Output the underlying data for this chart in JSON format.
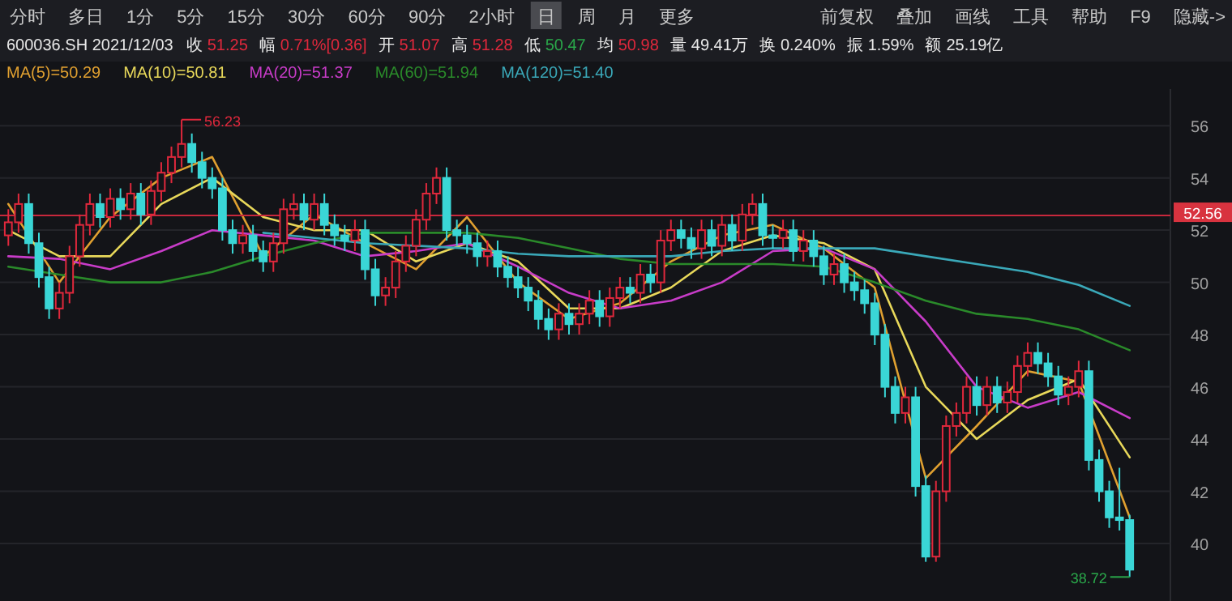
{
  "chart_data": {
    "type": "candlestick",
    "title": "600036.SH 2021/12/03",
    "subtitle": "收 51.25 幅 0.71%[0.36] 开 51.07 高 51.28 低 50.47 均 50.98 量 49.41万 换 0.240% 振 1.59% 额 25.19亿",
    "categories": [
      null,
      null,
      null,
      null,
      null,
      null,
      null,
      null,
      null,
      null,
      null,
      null,
      null,
      null,
      null,
      null,
      null,
      null,
      null,
      null,
      null,
      null,
      null,
      null,
      null,
      null,
      null,
      null,
      null,
      null,
      null,
      null,
      null,
      null,
      null,
      null,
      null,
      null,
      null,
      null,
      null,
      null,
      null,
      null,
      null,
      null,
      null,
      null,
      null,
      null,
      null,
      null,
      null,
      null,
      null,
      null,
      null,
      null,
      null,
      null,
      null,
      null,
      null,
      null,
      null,
      null,
      null,
      null,
      null,
      null,
      null,
      null,
      null,
      null,
      null,
      null,
      null,
      null,
      null,
      null,
      null,
      null,
      null,
      null,
      null,
      null,
      null,
      null,
      null,
      null,
      null,
      null,
      null,
      null,
      null,
      null,
      null,
      null,
      null,
      null,
      null,
      null,
      null,
      null,
      null,
      null,
      null,
      null,
      null,
      null,
      null
    ],
    "ohlc": [
      [
        51.8,
        52.8,
        51.4,
        52.3
      ],
      [
        52.3,
        53.4,
        51.9,
        53.0
      ],
      [
        53.0,
        53.4,
        51.1,
        51.5
      ],
      [
        51.5,
        51.9,
        49.8,
        50.2
      ],
      [
        50.2,
        50.6,
        48.6,
        49.0
      ],
      [
        49.0,
        50.0,
        48.6,
        49.6
      ],
      [
        49.6,
        51.4,
        49.2,
        51.0
      ],
      [
        51.0,
        52.6,
        50.6,
        52.2
      ],
      [
        52.2,
        53.4,
        51.8,
        53.0
      ],
      [
        53.0,
        53.4,
        52.1,
        52.5
      ],
      [
        52.5,
        53.6,
        52.1,
        53.2
      ],
      [
        53.2,
        53.6,
        52.4,
        52.8
      ],
      [
        52.8,
        53.8,
        52.4,
        53.4
      ],
      [
        53.4,
        53.8,
        52.2,
        52.6
      ],
      [
        52.6,
        53.9,
        52.2,
        53.5
      ],
      [
        53.5,
        54.6,
        53.1,
        54.2
      ],
      [
        54.2,
        55.2,
        53.8,
        54.8
      ],
      [
        54.8,
        56.23,
        54.4,
        55.3
      ],
      [
        55.3,
        55.7,
        54.2,
        54.6
      ],
      [
        54.6,
        55.0,
        53.6,
        54.0
      ],
      [
        54.0,
        54.4,
        53.2,
        53.6
      ],
      [
        53.6,
        54.0,
        51.6,
        52.0
      ],
      [
        52.0,
        52.4,
        51.1,
        51.5
      ],
      [
        51.5,
        52.2,
        51.1,
        51.8
      ],
      [
        51.8,
        52.2,
        50.8,
        51.2
      ],
      [
        51.2,
        51.6,
        50.4,
        50.8
      ],
      [
        50.8,
        51.9,
        50.4,
        51.5
      ],
      [
        51.5,
        53.2,
        51.1,
        52.8
      ],
      [
        52.8,
        53.4,
        52.4,
        53.0
      ],
      [
        53.0,
        53.4,
        52.0,
        52.4
      ],
      [
        52.4,
        53.4,
        52.0,
        53.0
      ],
      [
        53.0,
        53.4,
        51.8,
        52.2
      ],
      [
        52.2,
        52.6,
        51.4,
        51.8
      ],
      [
        51.8,
        52.2,
        51.2,
        51.6
      ],
      [
        51.6,
        52.4,
        51.2,
        52.0
      ],
      [
        52.0,
        52.4,
        50.1,
        50.5
      ],
      [
        50.5,
        50.9,
        49.1,
        49.5
      ],
      [
        49.5,
        50.2,
        49.1,
        49.8
      ],
      [
        49.8,
        51.2,
        49.4,
        50.8
      ],
      [
        50.8,
        51.8,
        50.4,
        51.4
      ],
      [
        51.4,
        52.8,
        51.0,
        52.4
      ],
      [
        52.4,
        53.8,
        52.0,
        53.4
      ],
      [
        53.4,
        54.4,
        53.0,
        54.0
      ],
      [
        54.0,
        54.4,
        51.6,
        52.0
      ],
      [
        52.0,
        52.4,
        51.4,
        51.8
      ],
      [
        51.8,
        52.2,
        51.1,
        51.5
      ],
      [
        51.5,
        51.9,
        50.6,
        51.0
      ],
      [
        51.0,
        51.6,
        50.6,
        51.2
      ],
      [
        51.2,
        51.6,
        50.2,
        50.6
      ],
      [
        50.6,
        51.0,
        49.8,
        50.2
      ],
      [
        50.2,
        50.6,
        49.4,
        49.8
      ],
      [
        49.8,
        50.2,
        48.9,
        49.3
      ],
      [
        49.3,
        49.7,
        48.2,
        48.6
      ],
      [
        48.6,
        49.0,
        47.8,
        48.2
      ],
      [
        48.2,
        49.2,
        47.8,
        48.8
      ],
      [
        48.8,
        49.2,
        48.0,
        48.4
      ],
      [
        48.4,
        49.2,
        48.0,
        48.8
      ],
      [
        48.8,
        49.7,
        48.4,
        49.3
      ],
      [
        49.3,
        49.7,
        48.3,
        48.7
      ],
      [
        48.7,
        49.8,
        48.3,
        49.4
      ],
      [
        49.4,
        50.2,
        49.0,
        49.8
      ],
      [
        49.8,
        50.2,
        49.2,
        49.6
      ],
      [
        49.6,
        50.7,
        49.2,
        50.3
      ],
      [
        50.3,
        50.7,
        49.6,
        50.0
      ],
      [
        50.0,
        52.0,
        49.6,
        51.6
      ],
      [
        51.6,
        52.4,
        51.2,
        52.0
      ],
      [
        52.0,
        52.4,
        51.3,
        51.7
      ],
      [
        51.7,
        52.1,
        50.9,
        51.3
      ],
      [
        51.3,
        52.4,
        50.9,
        52.0
      ],
      [
        52.0,
        52.4,
        51.0,
        51.4
      ],
      [
        51.4,
        52.6,
        51.0,
        52.2
      ],
      [
        52.2,
        52.6,
        51.2,
        51.6
      ],
      [
        51.6,
        53.0,
        51.2,
        52.6
      ],
      [
        52.6,
        53.4,
        52.2,
        53.0
      ],
      [
        53.0,
        53.4,
        51.4,
        51.8
      ],
      [
        51.8,
        52.2,
        51.3,
        51.7
      ],
      [
        51.7,
        52.4,
        51.3,
        52.0
      ],
      [
        52.0,
        52.4,
        50.8,
        51.2
      ],
      [
        51.2,
        52.0,
        50.8,
        51.6
      ],
      [
        51.6,
        52.0,
        50.6,
        51.0
      ],
      [
        51.0,
        51.4,
        49.9,
        50.3
      ],
      [
        50.3,
        51.1,
        49.9,
        50.7
      ],
      [
        50.7,
        51.1,
        49.6,
        50.0
      ],
      [
        50.0,
        50.4,
        49.3,
        49.7
      ],
      [
        49.7,
        50.1,
        48.8,
        49.2
      ],
      [
        49.2,
        49.6,
        47.6,
        48.0
      ],
      [
        48.0,
        48.4,
        45.6,
        46.0
      ],
      [
        46.0,
        46.4,
        44.6,
        45.0
      ],
      [
        45.0,
        46.0,
        44.6,
        45.6
      ],
      [
        45.6,
        46.0,
        41.8,
        42.2
      ],
      [
        42.2,
        42.6,
        39.3,
        39.5
      ],
      [
        39.5,
        42.4,
        39.3,
        42.0
      ],
      [
        42.0,
        44.9,
        41.6,
        44.5
      ],
      [
        44.5,
        45.4,
        44.1,
        45.0
      ],
      [
        45.0,
        46.4,
        44.6,
        46.0
      ],
      [
        46.0,
        46.4,
        44.9,
        45.3
      ],
      [
        45.3,
        46.4,
        44.9,
        46.0
      ],
      [
        46.0,
        46.4,
        45.0,
        45.4
      ],
      [
        45.4,
        46.2,
        45.0,
        45.8
      ],
      [
        45.8,
        47.2,
        45.4,
        46.8
      ],
      [
        46.8,
        47.7,
        46.4,
        47.3
      ],
      [
        47.3,
        47.7,
        46.5,
        46.9
      ],
      [
        46.9,
        47.3,
        46.0,
        46.4
      ],
      [
        46.4,
        46.8,
        45.3,
        45.7
      ],
      [
        45.7,
        46.4,
        45.3,
        46.0
      ],
      [
        46.0,
        47.0,
        45.6,
        46.6
      ],
      [
        46.6,
        47.0,
        42.8,
        43.2
      ],
      [
        43.2,
        43.6,
        41.6,
        42.0
      ],
      [
        42.0,
        42.4,
        40.6,
        41.0
      ],
      [
        41.0,
        42.9,
        40.5,
        40.9
      ],
      [
        40.9,
        41.1,
        38.72,
        39.0
      ]
    ],
    "colors": [
      "#e0283c",
      "#e0283c",
      "#3ad6d6",
      "#3ad6d6",
      "#3ad6d6",
      "#e0283c",
      "#e0283c",
      "#e0283c",
      "#e0283c",
      "#3ad6d6",
      "#e0283c",
      "#3ad6d6",
      "#e0283c",
      "#3ad6d6",
      "#e0283c",
      "#e0283c",
      "#e0283c",
      "#e0283c",
      "#3ad6d6",
      "#3ad6d6",
      "#3ad6d6",
      "#3ad6d6",
      "#3ad6d6",
      "#e0283c",
      "#3ad6d6",
      "#3ad6d6",
      "#e0283c",
      "#e0283c",
      "#e0283c",
      "#3ad6d6",
      "#e0283c",
      "#3ad6d6",
      "#3ad6d6",
      "#3ad6d6",
      "#e0283c",
      "#3ad6d6",
      "#3ad6d6",
      "#e0283c",
      "#e0283c",
      "#e0283c",
      "#e0283c",
      "#e0283c",
      "#e0283c",
      "#3ad6d6",
      "#3ad6d6",
      "#3ad6d6",
      "#3ad6d6",
      "#e0283c",
      "#3ad6d6",
      "#3ad6d6",
      "#3ad6d6",
      "#3ad6d6",
      "#3ad6d6",
      "#3ad6d6",
      "#e0283c",
      "#3ad6d6",
      "#e0283c",
      "#e0283c",
      "#3ad6d6",
      "#e0283c",
      "#e0283c",
      "#3ad6d6",
      "#e0283c",
      "#3ad6d6",
      "#e0283c",
      "#e0283c",
      "#3ad6d6",
      "#3ad6d6",
      "#e0283c",
      "#3ad6d6",
      "#e0283c",
      "#3ad6d6",
      "#e0283c",
      "#e0283c",
      "#3ad6d6",
      "#3ad6d6",
      "#e0283c",
      "#3ad6d6",
      "#e0283c",
      "#3ad6d6",
      "#3ad6d6",
      "#e0283c",
      "#3ad6d6",
      "#3ad6d6",
      "#3ad6d6",
      "#3ad6d6",
      "#3ad6d6",
      "#3ad6d6",
      "#e0283c",
      "#3ad6d6",
      "#3ad6d6",
      "#e0283c",
      "#e0283c",
      "#e0283c",
      "#e0283c",
      "#3ad6d6",
      "#e0283c",
      "#3ad6d6",
      "#e0283c",
      "#e0283c",
      "#e0283c",
      "#3ad6d6",
      "#3ad6d6",
      "#3ad6d6",
      "#e0283c",
      "#e0283c",
      "#3ad6d6",
      "#3ad6d6",
      "#3ad6d6",
      "#3ad6d6",
      "#3ad6d6"
    ],
    "series": [
      {
        "name": "MA(5)=50.29",
        "type": "line",
        "color": "#e0a030",
        "values": [
          53.0,
          null,
          null,
          null,
          null,
          50.0,
          null,
          null,
          null,
          null,
          52.5,
          null,
          null,
          null,
          null,
          54.0,
          null,
          null,
          null,
          null,
          54.8,
          null,
          null,
          null,
          null,
          51.0,
          null,
          null,
          null,
          null,
          52.6,
          null,
          null,
          null,
          null,
          51.5,
          null,
          null,
          null,
          null,
          50.5,
          null,
          null,
          null,
          null,
          52.5,
          null,
          null,
          null,
          null,
          50.0,
          null,
          null,
          null,
          null,
          48.6,
          null,
          null,
          null,
          null,
          49.2,
          null,
          null,
          null,
          null,
          50.8,
          null,
          null,
          null,
          null,
          51.8,
          null,
          null,
          null,
          null,
          52.2,
          null,
          null,
          null,
          null,
          51.3,
          null,
          null,
          null,
          null,
          49.8,
          null,
          null,
          null,
          null,
          42.5,
          null,
          null,
          null,
          null,
          44.5,
          null,
          null,
          null,
          null,
          46.6,
          null,
          null,
          null,
          null,
          46.2,
          null,
          null,
          null,
          null,
          41.0
        ]
      },
      {
        "name": "MA(10)=50.81",
        "type": "line",
        "color": "#e8d85a",
        "values": [
          52.0,
          null,
          null,
          null,
          null,
          51.0,
          null,
          null,
          null,
          null,
          51.0,
          null,
          null,
          null,
          null,
          53.0,
          null,
          null,
          null,
          null,
          54.0,
          null,
          null,
          null,
          null,
          52.5,
          null,
          null,
          null,
          null,
          52.0,
          null,
          null,
          null,
          null,
          52.0,
          null,
          null,
          null,
          null,
          50.8,
          null,
          null,
          null,
          null,
          51.5,
          null,
          null,
          null,
          null,
          50.8,
          null,
          null,
          null,
          null,
          49.0,
          null,
          null,
          null,
          null,
          49.0,
          null,
          null,
          null,
          null,
          49.8,
          null,
          null,
          null,
          null,
          51.2,
          null,
          null,
          null,
          null,
          51.8,
          null,
          null,
          null,
          null,
          51.5,
          null,
          null,
          null,
          null,
          50.5,
          null,
          null,
          null,
          null,
          46.0,
          null,
          null,
          null,
          null,
          44.0,
          null,
          null,
          null,
          null,
          45.5,
          null,
          null,
          null,
          null,
          46.3,
          null,
          null,
          null,
          null,
          43.3
        ]
      },
      {
        "name": "MA(20)=51.37",
        "type": "line",
        "color": "#c83cc8",
        "values": [
          51.0,
          null,
          null,
          null,
          null,
          50.9,
          null,
          null,
          null,
          null,
          50.5,
          null,
          null,
          null,
          null,
          51.2,
          null,
          null,
          null,
          null,
          52.0,
          null,
          null,
          null,
          null,
          51.8,
          null,
          null,
          null,
          null,
          51.6,
          null,
          null,
          null,
          null,
          51.0,
          null,
          null,
          null,
          null,
          51.2,
          null,
          null,
          null,
          null,
          51.5,
          null,
          null,
          null,
          null,
          50.6,
          null,
          null,
          null,
          null,
          49.6,
          null,
          null,
          null,
          null,
          49.0,
          null,
          null,
          null,
          null,
          49.3,
          null,
          null,
          null,
          null,
          50.0,
          null,
          null,
          null,
          null,
          51.2,
          null,
          null,
          null,
          null,
          51.3,
          null,
          null,
          null,
          null,
          50.5,
          null,
          null,
          null,
          null,
          48.5,
          null,
          null,
          null,
          null,
          46.0,
          null,
          null,
          null,
          null,
          45.2,
          null,
          null,
          null,
          null,
          45.8,
          null,
          null,
          null,
          null,
          44.8
        ]
      },
      {
        "name": "MA(60)=51.94",
        "type": "line",
        "color": "#2a8a2a",
        "values": [
          50.6,
          null,
          null,
          null,
          null,
          50.3,
          null,
          null,
          null,
          null,
          50.0,
          null,
          null,
          null,
          null,
          50.0,
          null,
          null,
          null,
          null,
          50.4,
          null,
          null,
          null,
          null,
          51.0,
          null,
          null,
          null,
          null,
          51.5,
          null,
          null,
          null,
          null,
          51.9,
          null,
          null,
          null,
          null,
          51.9,
          null,
          null,
          null,
          null,
          51.9,
          null,
          null,
          null,
          null,
          51.7,
          null,
          null,
          null,
          null,
          51.3,
          null,
          null,
          null,
          null,
          50.9,
          null,
          null,
          null,
          null,
          50.7,
          null,
          null,
          null,
          null,
          50.7,
          null,
          null,
          null,
          null,
          50.7,
          null,
          null,
          null,
          null,
          50.6,
          null,
          null,
          null,
          null,
          50.0,
          null,
          null,
          null,
          null,
          49.3,
          null,
          null,
          null,
          null,
          48.8,
          null,
          null,
          null,
          null,
          48.6,
          null,
          null,
          null,
          null,
          48.2,
          null,
          null,
          null,
          null,
          47.4
        ]
      },
      {
        "name": "MA(120)=51.40",
        "type": "line",
        "color": "#3aa8b8",
        "values": [
          null,
          null,
          null,
          null,
          null,
          null,
          null,
          null,
          null,
          null,
          null,
          null,
          null,
          null,
          null,
          null,
          null,
          null,
          null,
          null,
          null,
          null,
          null,
          null,
          null,
          51.9,
          null,
          null,
          null,
          null,
          51.7,
          null,
          null,
          null,
          null,
          51.5,
          null,
          null,
          null,
          null,
          51.4,
          null,
          null,
          null,
          null,
          51.3,
          null,
          null,
          null,
          null,
          51.1,
          null,
          null,
          null,
          null,
          51.0,
          null,
          null,
          null,
          null,
          51.0,
          null,
          null,
          null,
          null,
          51.0,
          null,
          null,
          null,
          null,
          51.2,
          null,
          null,
          null,
          null,
          51.3,
          null,
          null,
          null,
          null,
          51.3,
          null,
          null,
          null,
          null,
          51.3,
          null,
          null,
          null,
          null,
          51.0,
          null,
          null,
          null,
          null,
          50.7,
          null,
          null,
          null,
          null,
          50.4,
          null,
          null,
          null,
          null,
          49.9,
          null,
          null,
          null,
          null,
          49.1
        ]
      }
    ],
    "ylim": [
      37.8,
      57.4
    ],
    "yticks": [
      40,
      42,
      44,
      46,
      48,
      50,
      52,
      54,
      56
    ],
    "grid": "y",
    "legend": "top left",
    "tick_labels": "y",
    "ref_lines": [
      {
        "axis": "y",
        "value": 52.56,
        "label": "52.56",
        "color": "#c8283c"
      }
    ],
    "annotations": [
      "分时",
      "多日",
      "1分",
      "5分",
      "15分",
      "30分",
      "60分",
      "90分",
      "2小时",
      "日",
      "周",
      "月",
      "更多",
      "前复权",
      "叠加",
      "画线",
      "工具",
      "帮助",
      "F9",
      "隐藏->",
      "56.23",
      "38.72"
    ]
  }
}
